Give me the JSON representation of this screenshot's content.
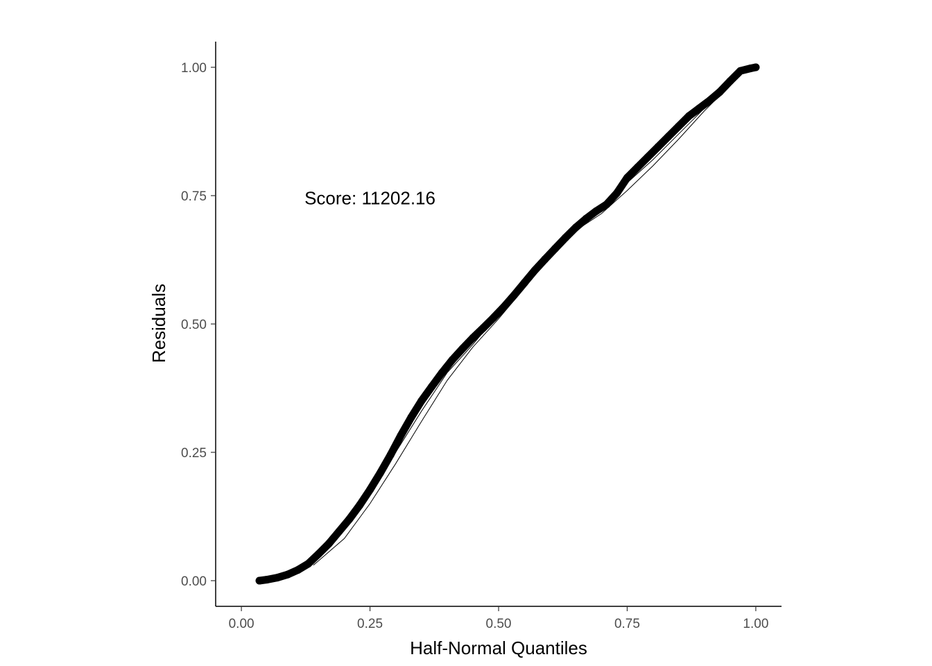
{
  "chart_data": {
    "type": "scatter",
    "title": "",
    "xlabel": "Half-Normal Quantiles",
    "ylabel": "Residuals",
    "xlim": [
      -0.05,
      1.05
    ],
    "ylim": [
      -0.05,
      1.05
    ],
    "x_ticks": [
      0.0,
      0.25,
      0.5,
      0.75,
      1.0
    ],
    "x_tick_labels": [
      "0.00",
      "0.25",
      "0.50",
      "0.75",
      "1.00"
    ],
    "y_ticks": [
      0.0,
      0.25,
      0.5,
      0.75,
      1.0
    ],
    "y_tick_labels": [
      "0.00",
      "0.25",
      "0.50",
      "0.75",
      "1.00"
    ],
    "grid": false,
    "annotation": {
      "text": "Score: 11202.16",
      "x": 0.25,
      "y": 0.745
    },
    "series": [
      {
        "points": [
          [
            0.035,
            0.0
          ],
          [
            0.05,
            0.002
          ],
          [
            0.07,
            0.006
          ],
          [
            0.09,
            0.012
          ],
          [
            0.11,
            0.021
          ],
          [
            0.13,
            0.033
          ],
          [
            0.15,
            0.052
          ],
          [
            0.17,
            0.072
          ],
          [
            0.19,
            0.096
          ],
          [
            0.21,
            0.12
          ],
          [
            0.23,
            0.147
          ],
          [
            0.25,
            0.177
          ],
          [
            0.27,
            0.21
          ],
          [
            0.29,
            0.245
          ],
          [
            0.31,
            0.283
          ],
          [
            0.33,
            0.318
          ],
          [
            0.35,
            0.35
          ],
          [
            0.37,
            0.378
          ],
          [
            0.39,
            0.405
          ],
          [
            0.41,
            0.43
          ],
          [
            0.43,
            0.452
          ],
          [
            0.45,
            0.473
          ],
          [
            0.47,
            0.492
          ],
          [
            0.49,
            0.512
          ],
          [
            0.51,
            0.533
          ],
          [
            0.53,
            0.556
          ],
          [
            0.55,
            0.58
          ],
          [
            0.57,
            0.604
          ],
          [
            0.59,
            0.626
          ],
          [
            0.61,
            0.647
          ],
          [
            0.63,
            0.668
          ],
          [
            0.65,
            0.688
          ],
          [
            0.67,
            0.705
          ],
          [
            0.69,
            0.72
          ],
          [
            0.71,
            0.733
          ],
          [
            0.73,
            0.755
          ],
          [
            0.75,
            0.785
          ],
          [
            0.77,
            0.805
          ],
          [
            0.79,
            0.825
          ],
          [
            0.81,
            0.845
          ],
          [
            0.83,
            0.865
          ],
          [
            0.85,
            0.885
          ],
          [
            0.87,
            0.905
          ],
          [
            0.89,
            0.92
          ],
          [
            0.91,
            0.935
          ],
          [
            0.93,
            0.952
          ],
          [
            0.95,
            0.973
          ],
          [
            0.97,
            0.993
          ],
          [
            0.99,
            0.998
          ],
          [
            1.0,
            1.0
          ]
        ]
      }
    ],
    "envelope": {
      "upper": [
        [
          0.14,
          0.04
        ],
        [
          0.2,
          0.1
        ],
        [
          0.25,
          0.17
        ],
        [
          0.3,
          0.25
        ],
        [
          0.35,
          0.33
        ],
        [
          0.4,
          0.405
        ],
        [
          0.45,
          0.46
        ],
        [
          0.5,
          0.52
        ],
        [
          0.55,
          0.585
        ],
        [
          0.6,
          0.64
        ],
        [
          0.65,
          0.69
        ],
        [
          0.7,
          0.728
        ],
        [
          0.75,
          0.775
        ],
        [
          0.8,
          0.82
        ],
        [
          0.85,
          0.87
        ],
        [
          0.9,
          0.92
        ],
        [
          0.95,
          0.97
        ]
      ],
      "lower": [
        [
          0.14,
          0.03
        ],
        [
          0.2,
          0.082
        ],
        [
          0.25,
          0.15
        ],
        [
          0.3,
          0.228
        ],
        [
          0.35,
          0.31
        ],
        [
          0.4,
          0.39
        ],
        [
          0.45,
          0.455
        ],
        [
          0.5,
          0.51
        ],
        [
          0.55,
          0.57
        ],
        [
          0.6,
          0.63
        ],
        [
          0.65,
          0.682
        ],
        [
          0.7,
          0.715
        ],
        [
          0.75,
          0.76
        ],
        [
          0.8,
          0.808
        ],
        [
          0.85,
          0.86
        ],
        [
          0.9,
          0.915
        ],
        [
          0.95,
          0.965
        ]
      ]
    }
  }
}
